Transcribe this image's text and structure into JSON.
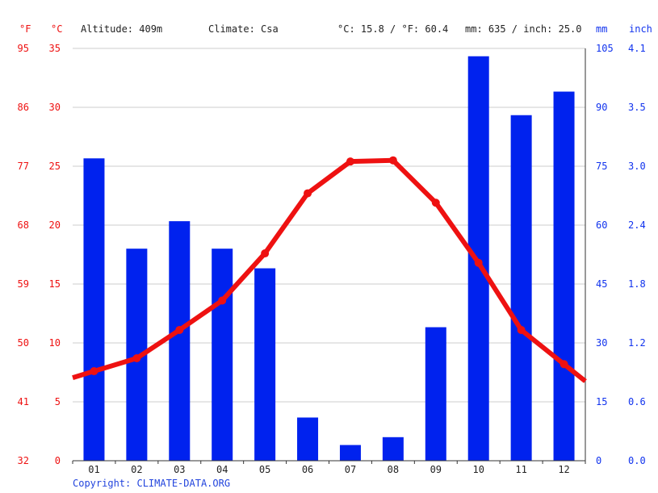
{
  "header": {
    "unit_f": "°F",
    "unit_c": "°C",
    "altitude": "Altitude: 409m",
    "climate": "Climate: Csa",
    "temp_avg": "°C: 15.8 / °F: 60.4",
    "precip_total": "mm: 635 / inch: 25.0",
    "unit_mm": "mm",
    "unit_inch": "inch"
  },
  "footer": {
    "copyright": "Copyright: CLIMATE-DATA.ORG"
  },
  "colors": {
    "temperature": "#ee1111",
    "precipitation": "#0022ee",
    "grid": "#cccccc"
  },
  "chart_data": {
    "type": "bar+line",
    "categories": [
      "01",
      "02",
      "03",
      "04",
      "05",
      "06",
      "07",
      "08",
      "09",
      "10",
      "11",
      "12"
    ],
    "axes": {
      "celsius": {
        "ticks": [
          "0",
          "5",
          "10",
          "15",
          "20",
          "25",
          "30",
          "35"
        ],
        "range": [
          0,
          35
        ]
      },
      "fahrenheit": {
        "ticks": [
          "32",
          "41",
          "50",
          "59",
          "68",
          "77",
          "86",
          "95"
        ]
      },
      "mm": {
        "ticks": [
          "0",
          "15",
          "30",
          "45",
          "60",
          "75",
          "90",
          "105"
        ],
        "range": [
          0,
          105
        ]
      },
      "inch": {
        "ticks": [
          "0.0",
          "0.6",
          "1.2",
          "1.8",
          "2.4",
          "3.0",
          "3.5",
          "4.1"
        ]
      }
    },
    "grid": true,
    "series": [
      {
        "kind": "bar",
        "axis": "mm",
        "values": [
          77,
          54,
          61,
          54,
          49,
          11,
          4,
          6,
          34,
          103,
          88,
          94
        ]
      },
      {
        "kind": "line",
        "axis": "celsius",
        "values": [
          7.6,
          8.7,
          11.1,
          13.6,
          17.6,
          22.7,
          25.4,
          25.5,
          21.9,
          16.8,
          11.1,
          8.2
        ]
      }
    ]
  }
}
